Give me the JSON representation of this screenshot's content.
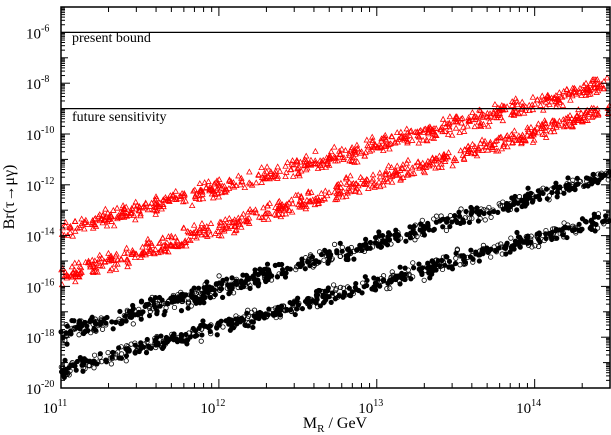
{
  "chart_data": {
    "type": "scatter",
    "xlabel": "M_R / GeV",
    "ylabel": "Br(τ→μγ)",
    "x_scale": "log",
    "y_scale": "log",
    "xlim": [
      100000000000.0,
      300000000000000.0
    ],
    "ylim": [
      1e-20,
      1e-05
    ],
    "x_ticks": [
      {
        "base": "10",
        "exp": "11",
        "value": 100000000000.0
      },
      {
        "base": "10",
        "exp": "12",
        "value": 1000000000000.0
      },
      {
        "base": "10",
        "exp": "13",
        "value": 10000000000000.0
      },
      {
        "base": "10",
        "exp": "14",
        "value": 100000000000000.0
      }
    ],
    "y_ticks": [
      {
        "base": "10",
        "exp": "-6",
        "value": 1e-06
      },
      {
        "base": "10",
        "exp": "-8",
        "value": 1e-08
      },
      {
        "base": "10",
        "exp": "-10",
        "value": 1e-10
      },
      {
        "base": "10",
        "exp": "-12",
        "value": 1e-12
      },
      {
        "base": "10",
        "exp": "-14",
        "value": 1e-14
      },
      {
        "base": "10",
        "exp": "-16",
        "value": 1e-16
      },
      {
        "base": "10",
        "exp": "-18",
        "value": 1e-18
      },
      {
        "base": "10",
        "exp": "-20",
        "value": 1e-20
      }
    ],
    "reference_lines": [
      {
        "label": "present bound",
        "y": 1e-06
      },
      {
        "label": "future sensitivity",
        "y": 1e-09
      }
    ],
    "series": [
      {
        "color": "#ff0000",
        "marker": "open-triangle",
        "band_log10_y": {
          "at_x_1e11": [
            -14.3,
            -13.3
          ],
          "at_x_3e14": [
            -8.5,
            -7.5
          ]
        }
      },
      {
        "color": "#ff0000",
        "marker": "open-triangle",
        "band_log10_y": {
          "at_x_1e11": [
            -16.2,
            -15.0
          ],
          "at_x_3e14": [
            -9.5,
            -8.5
          ]
        }
      },
      {
        "color": "#000000",
        "marker": "filled-and-open-circle",
        "band_log10_y": {
          "at_x_1e11": [
            -18.5,
            -17.3
          ],
          "at_x_3e14": [
            -12.0,
            -11.2
          ]
        }
      },
      {
        "color": "#000000",
        "marker": "filled-and-open-circle",
        "band_log10_y": {
          "at_x_1e11": [
            -19.8,
            -18.8
          ],
          "at_x_3e14": [
            -13.8,
            -12.8
          ]
        }
      }
    ],
    "grid": false,
    "legend": "none"
  }
}
